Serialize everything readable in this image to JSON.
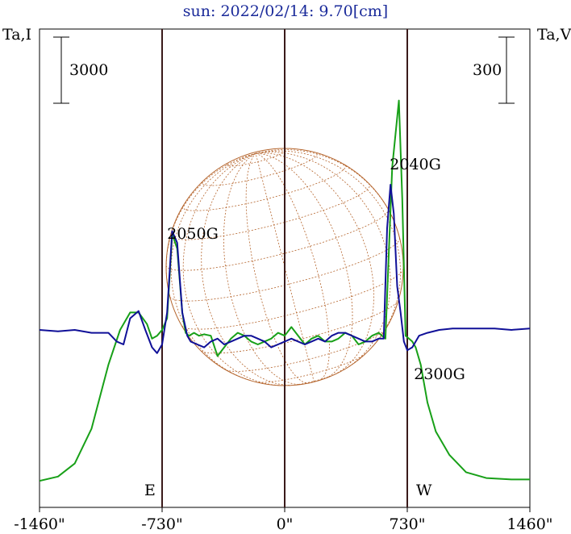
{
  "chart_data": {
    "type": "line",
    "title": "sun: 2022/02/14: 9.70[cm]",
    "ylabel_left": "Ta,I",
    "ylabel_right": "Ta,V",
    "x_unit": "arcsec",
    "xlim": [
      -1460,
      1460
    ],
    "x_ticks": [
      -1460,
      -730,
      0,
      730,
      1460
    ],
    "x_tick_labels": [
      "-1460\"",
      "-730\"",
      "0\"",
      "730\"",
      "1460\""
    ],
    "limb_lines": [
      -730,
      0,
      730
    ],
    "limb_labels": {
      "east": "E",
      "west": "W"
    },
    "scale_bars": {
      "left_label": "3000",
      "right_label": "300"
    },
    "grid": false,
    "sun_disk": true,
    "annotations": [
      {
        "text": "2050G",
        "x": -730
      },
      {
        "text": "2040G",
        "x": 590
      },
      {
        "text": "2300G",
        "x": 700
      }
    ],
    "series": [
      {
        "color": "#18a018",
        "x": [
          -1460,
          -1350,
          -1250,
          -1150,
          -1050,
          -980,
          -920,
          -870,
          -820,
          -790,
          -760,
          -730,
          -700,
          -670,
          -640,
          -610,
          -590,
          -570,
          -540,
          -510,
          -480,
          -440,
          -400,
          -360,
          -320,
          -280,
          -240,
          -200,
          -160,
          -120,
          -80,
          -40,
          0,
          40,
          80,
          120,
          160,
          200,
          240,
          280,
          320,
          360,
          400,
          440,
          480,
          520,
          560,
          600,
          640,
          680,
          700,
          720,
          740,
          760,
          780,
          810,
          850,
          900,
          980,
          1080,
          1200,
          1350,
          1460
        ],
        "y": [
          -520,
          -505,
          -460,
          -340,
          -120,
          0,
          60,
          60,
          20,
          -30,
          -20,
          0,
          40,
          330,
          280,
          60,
          -10,
          -20,
          -10,
          -20,
          -15,
          -20,
          -90,
          -60,
          -30,
          -10,
          -20,
          -40,
          -50,
          -40,
          -30,
          -10,
          -20,
          10,
          -20,
          -50,
          -30,
          -20,
          -40,
          -40,
          -30,
          -10,
          -20,
          -50,
          -40,
          -20,
          -10,
          -30,
          560,
          790,
          450,
          -20,
          -30,
          -40,
          -60,
          -120,
          -250,
          -350,
          -430,
          -490,
          -510,
          -515,
          -515
        ]
      },
      {
        "color": "#101098",
        "x": [
          -1460,
          -1350,
          -1250,
          -1150,
          -1050,
          -1000,
          -960,
          -920,
          -870,
          -830,
          -790,
          -760,
          -730,
          -700,
          -670,
          -640,
          -610,
          -580,
          -560,
          -520,
          -480,
          -440,
          -400,
          -360,
          -320,
          -280,
          -240,
          -200,
          -160,
          -120,
          -80,
          -40,
          0,
          40,
          80,
          120,
          160,
          200,
          240,
          280,
          320,
          360,
          400,
          440,
          480,
          520,
          560,
          590,
          610,
          630,
          650,
          670,
          690,
          710,
          730,
          760,
          800,
          850,
          920,
          1000,
          1100,
          1250,
          1350,
          1460
        ],
        "y": [
          0,
          -5,
          0,
          -10,
          -10,
          -40,
          -50,
          40,
          65,
          0,
          -60,
          -80,
          -50,
          60,
          340,
          300,
          60,
          -20,
          -40,
          -50,
          -60,
          -40,
          -30,
          -50,
          -40,
          -30,
          -20,
          -20,
          -30,
          -40,
          -60,
          -50,
          -40,
          -30,
          -40,
          -50,
          -40,
          -30,
          -40,
          -20,
          -10,
          -10,
          -20,
          -30,
          -40,
          -40,
          -30,
          -30,
          350,
          500,
          400,
          150,
          60,
          -40,
          -70,
          -60,
          -20,
          -10,
          0,
          5,
          5,
          5,
          0,
          5
        ]
      }
    ]
  }
}
